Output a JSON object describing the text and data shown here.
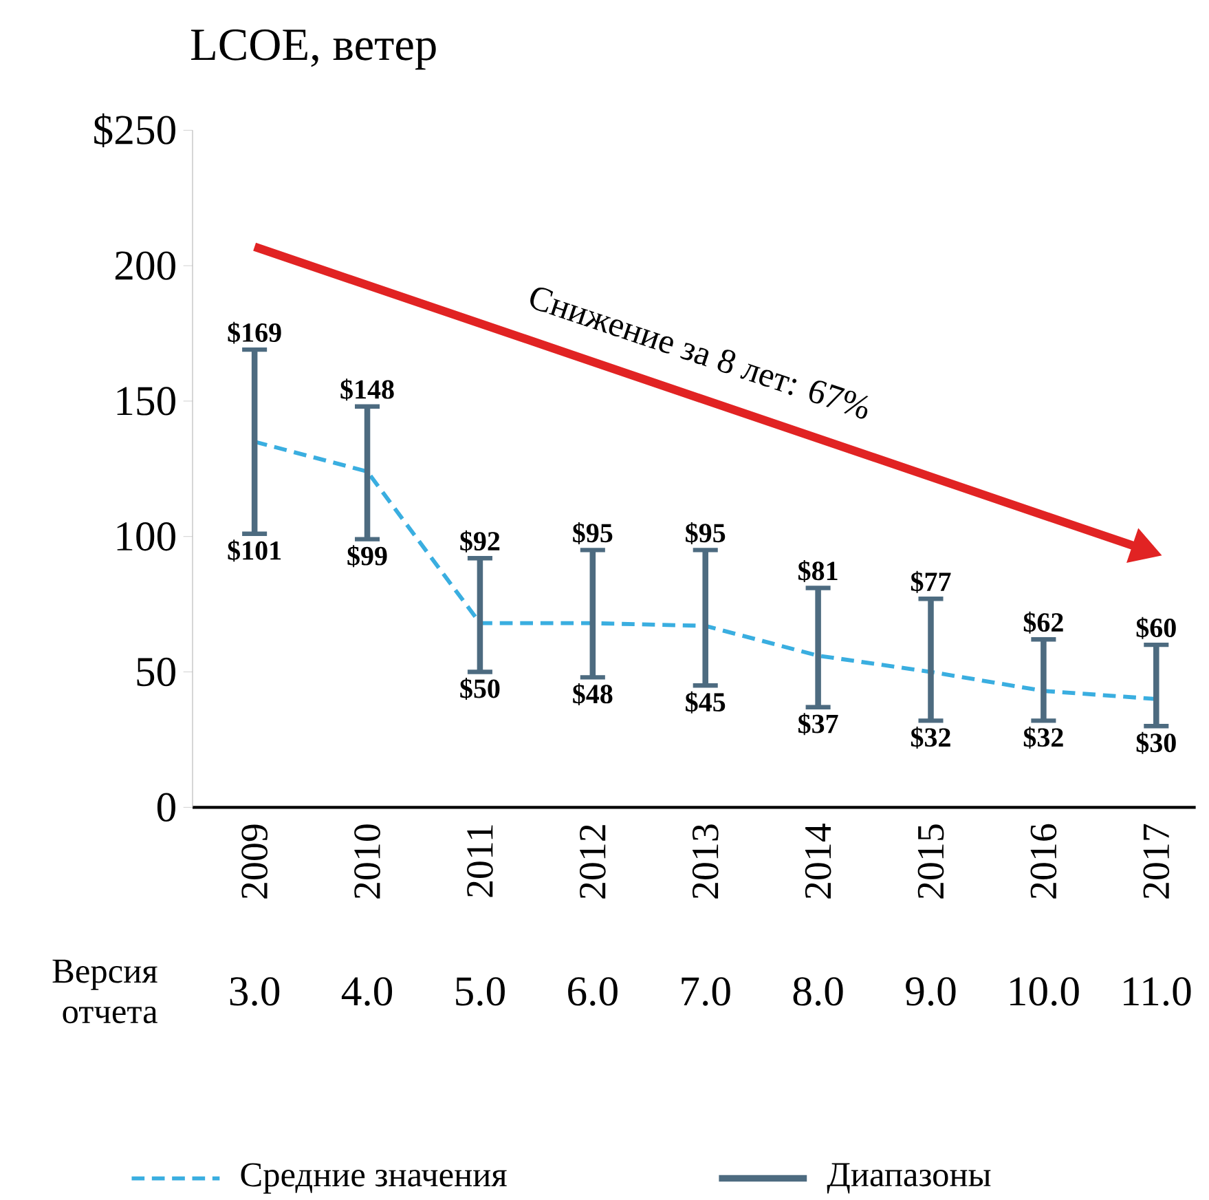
{
  "chart_data": {
    "type": "bar",
    "title": "LCOE, ветер",
    "categories": [
      "2009",
      "2010",
      "2011",
      "2012",
      "2013",
      "2014",
      "2015",
      "2016",
      "2017"
    ],
    "series": [
      {
        "name": "Средние значения",
        "type": "line",
        "line_style": "dashed",
        "color": "#3aaee0",
        "values": [
          135,
          124,
          68,
          68,
          67,
          56,
          50,
          43,
          40
        ]
      },
      {
        "name": "Диапазоны",
        "color": "#4d6b80",
        "base": [
          101,
          99,
          50,
          48,
          45,
          37,
          32,
          32,
          30
        ],
        "values": [
          68,
          49,
          42,
          47,
          50,
          44,
          45,
          30,
          30
        ]
      }
    ],
    "ylim": [
      0,
      250
    ],
    "yticks": [
      0,
      50,
      100,
      150,
      200,
      {
        "value": 250,
        "label": "$250"
      }
    ],
    "legend": "bottom",
    "annotations": [
      "Снижение за 8 лет: 67%",
      "Версия отчета",
      {
        "text": "$169",
        "x": "2009",
        "y": 169
      },
      {
        "text": "$101",
        "x": "2009",
        "y": 101
      },
      {
        "text": "$148",
        "x": "2010",
        "y": 148
      },
      {
        "text": "$99",
        "x": "2010",
        "y": 99
      },
      {
        "text": "$92",
        "x": "2011",
        "y": 92
      },
      {
        "text": "$50",
        "x": "2011",
        "y": 50
      },
      {
        "text": "$95",
        "x": "2012",
        "y": 95
      },
      {
        "text": "$48",
        "x": "2012",
        "y": 48
      },
      {
        "text": "$95",
        "x": "2013",
        "y": 95
      },
      {
        "text": "$45",
        "x": "2013",
        "y": 45
      },
      {
        "text": "$81",
        "x": "2014",
        "y": 81
      },
      {
        "text": "$37",
        "x": "2014",
        "y": 37
      },
      {
        "text": "$77",
        "x": "2015",
        "y": 77
      },
      {
        "text": "$32",
        "x": "2015",
        "y": 32
      },
      {
        "text": "$62",
        "x": "2016",
        "y": 62
      },
      {
        "text": "$32",
        "x": "2016",
        "y": 32
      },
      {
        "text": "$60",
        "x": "2017",
        "y": 60
      },
      {
        "text": "$30",
        "x": "2017",
        "y": 30
      },
      "3.0",
      "4.0",
      "5.0",
      "6.0",
      "7.0",
      "8.0",
      "9.0",
      "10.0",
      "11.0"
    ]
  }
}
